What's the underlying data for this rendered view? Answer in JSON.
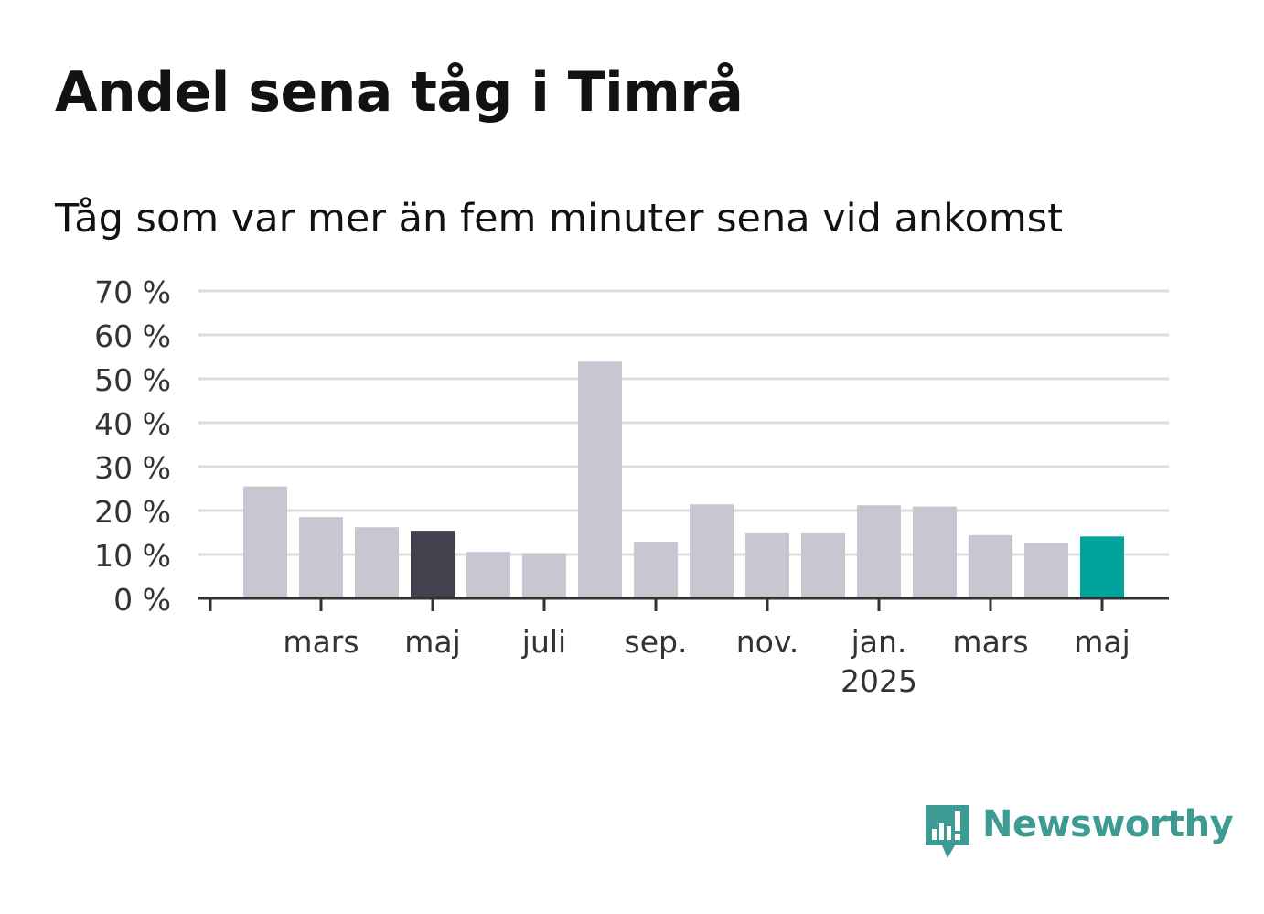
{
  "title": "Andel sena tåg i Timrå",
  "subtitle": "Tåg som var mer än fem minuter sena vid ankomst",
  "brand": {
    "name": "Newsworthy",
    "icon": "newsworthy-logo-icon"
  },
  "colors": {
    "bar_default": "#c8c7d1",
    "bar_previous_year": "#43414e",
    "bar_latest": "#00a49a",
    "grid": "#dcdcdc",
    "axis": "#333333",
    "brand": "#3d9b93"
  },
  "chart_data": {
    "type": "bar",
    "title": "Andel sena tåg i Timrå",
    "subtitle": "Tåg som var mer än fem minuter sena vid ankomst",
    "ylabel": "",
    "xlabel": "",
    "ylim": [
      0,
      70
    ],
    "yticks": [
      0,
      10,
      20,
      30,
      40,
      50,
      60,
      70
    ],
    "ytick_labels": [
      "0 %",
      "10 %",
      "20 %",
      "30 %",
      "40 %",
      "50 %",
      "60 %",
      "70 %"
    ],
    "grid": true,
    "categories": [
      "2024-02",
      "2024-03",
      "2024-04",
      "2024-05",
      "2024-06",
      "2024-07",
      "2024-08",
      "2024-09",
      "2024-10",
      "2024-11",
      "2024-12",
      "2025-01",
      "2025-02",
      "2025-03",
      "2025-04",
      "2025-05"
    ],
    "values": [
      25.5,
      18.5,
      16.2,
      15.4,
      10.6,
      10.3,
      53.9,
      12.9,
      21.4,
      14.8,
      14.8,
      21.2,
      20.9,
      14.4,
      12.6,
      14.1
    ],
    "highlight": {
      "2024-05": "bar_previous_year",
      "2025-05": "bar_latest"
    },
    "xticks": [
      {
        "at": "2024-03",
        "label": "mars"
      },
      {
        "at": "2024-05",
        "label": "maj"
      },
      {
        "at": "2024-07",
        "label": "juli"
      },
      {
        "at": "2024-09",
        "label": "sep."
      },
      {
        "at": "2024-11",
        "label": "nov."
      },
      {
        "at": "2025-01",
        "label": "jan.",
        "sublabel": "2025"
      },
      {
        "at": "2025-03",
        "label": "mars"
      },
      {
        "at": "2025-05",
        "label": "maj"
      }
    ]
  }
}
